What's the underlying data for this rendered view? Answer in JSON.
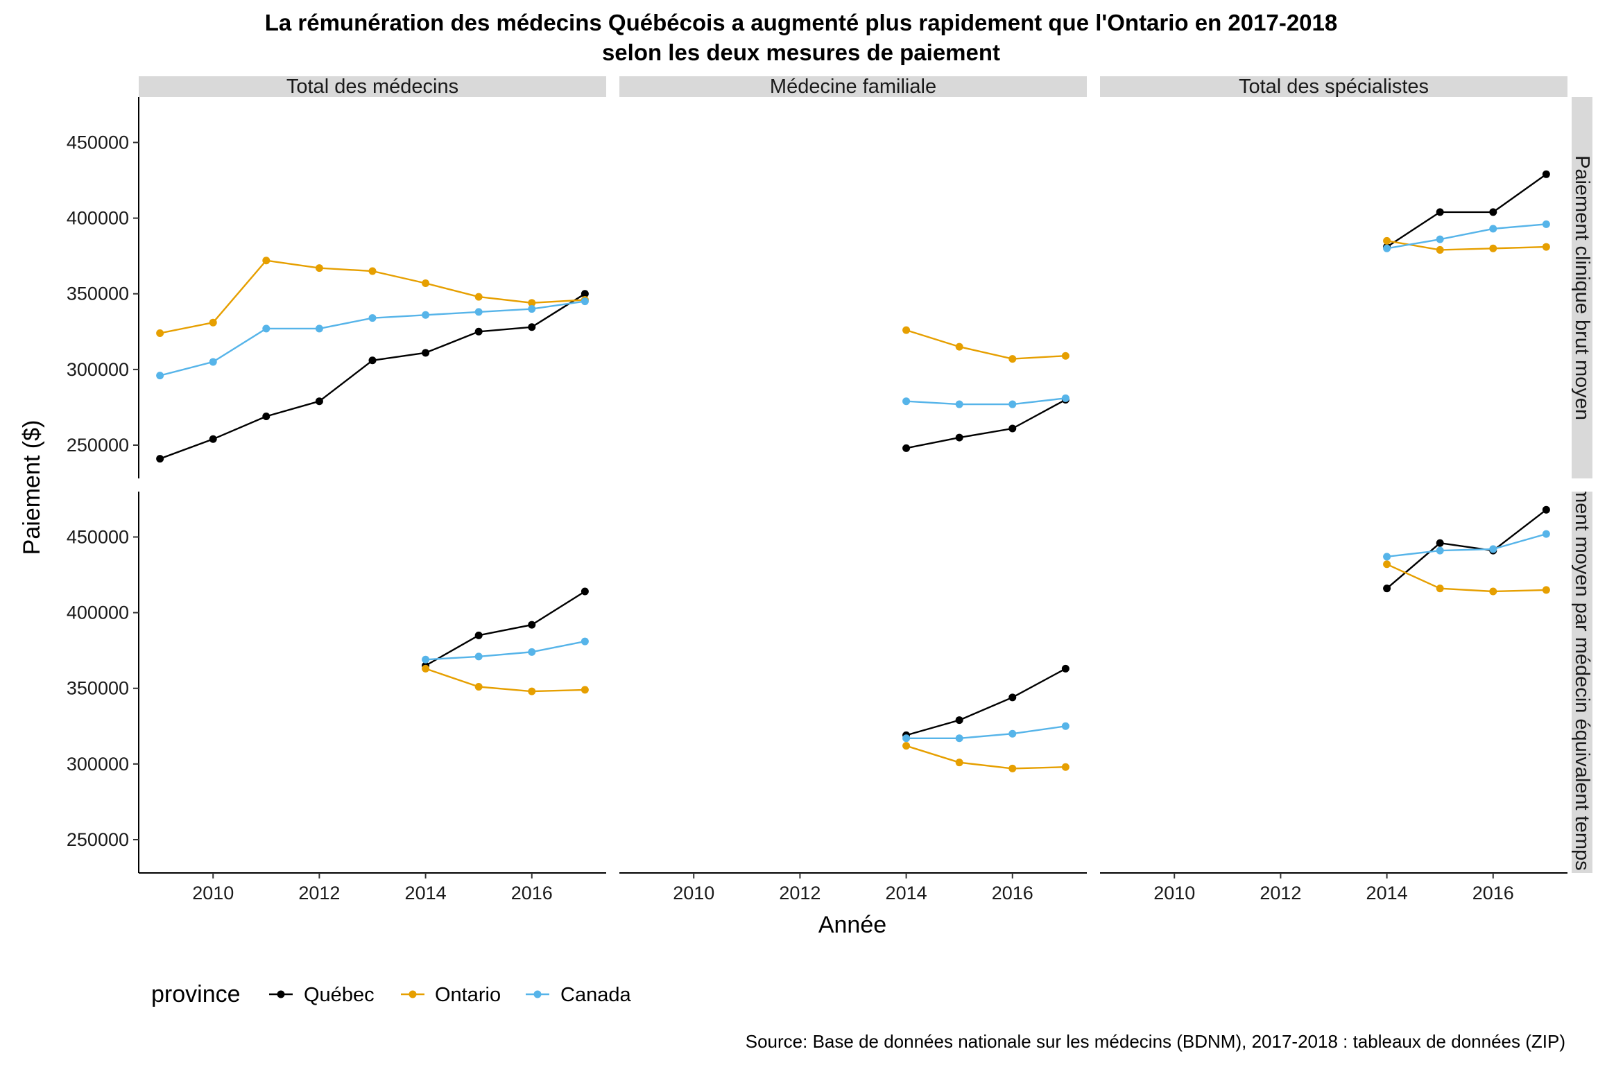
{
  "chart_data": {
    "type": "line",
    "title": "La rémunération des médecins Québécois a augmenté plus rapidement que l'Ontario en 2017-2018",
    "subtitle": "selon les deux mesures de paiement",
    "xlabel": "Année",
    "ylabel": "Paiement ($)",
    "caption": "Source:  Base de données nationale sur les médecins (BDNM), 2017-2018 : tableaux de données (ZIP)",
    "legend": {
      "title": "province",
      "position": "bottom-left"
    },
    "xlim": [
      2008.6,
      2017.4
    ],
    "ylim": [
      228000,
      480000
    ],
    "x_ticks": [
      2010,
      2012,
      2014,
      2016
    ],
    "y_ticks": [
      250000,
      300000,
      350000,
      400000,
      450000
    ],
    "grid": false,
    "columns": [
      "Total des médecins",
      "Médecine familiale",
      "Total des spécialistes"
    ],
    "rows": [
      "Paiement clinique brut moyen",
      "Paiement moyen par médecin équivalent temps plein"
    ],
    "series_styles": [
      {
        "name": "Québec",
        "color": "#000000"
      },
      {
        "name": "Ontario",
        "color": "#E69F00"
      },
      {
        "name": "Canada",
        "color": "#56B4E9"
      }
    ],
    "panels": [
      {
        "row": 0,
        "col": 0,
        "series": [
          {
            "name": "Québec",
            "x": [
              2009,
              2010,
              2011,
              2012,
              2013,
              2014,
              2015,
              2016,
              2017
            ],
            "y": [
              241000,
              254000,
              269000,
              279000,
              306000,
              311000,
              325000,
              328000,
              350000
            ]
          },
          {
            "name": "Ontario",
            "x": [
              2009,
              2010,
              2011,
              2012,
              2013,
              2014,
              2015,
              2016,
              2017
            ],
            "y": [
              324000,
              331000,
              372000,
              367000,
              365000,
              357000,
              348000,
              344000,
              346000
            ]
          },
          {
            "name": "Canada",
            "x": [
              2009,
              2010,
              2011,
              2012,
              2013,
              2014,
              2015,
              2016,
              2017
            ],
            "y": [
              296000,
              305000,
              327000,
              327000,
              334000,
              336000,
              338000,
              340000,
              345000
            ]
          }
        ]
      },
      {
        "row": 0,
        "col": 1,
        "series": [
          {
            "name": "Québec",
            "x": [
              2014,
              2015,
              2016,
              2017
            ],
            "y": [
              248000,
              255000,
              261000,
              280000
            ]
          },
          {
            "name": "Ontario",
            "x": [
              2014,
              2015,
              2016,
              2017
            ],
            "y": [
              326000,
              315000,
              307000,
              309000
            ]
          },
          {
            "name": "Canada",
            "x": [
              2014,
              2015,
              2016,
              2017
            ],
            "y": [
              279000,
              277000,
              277000,
              281000
            ]
          }
        ]
      },
      {
        "row": 0,
        "col": 2,
        "series": [
          {
            "name": "Québec",
            "x": [
              2014,
              2015,
              2016,
              2017
            ],
            "y": [
              381000,
              404000,
              404000,
              429000
            ]
          },
          {
            "name": "Ontario",
            "x": [
              2014,
              2015,
              2016,
              2017
            ],
            "y": [
              385000,
              379000,
              380000,
              381000
            ]
          },
          {
            "name": "Canada",
            "x": [
              2014,
              2015,
              2016,
              2017
            ],
            "y": [
              380000,
              386000,
              393000,
              396000
            ]
          }
        ]
      },
      {
        "row": 1,
        "col": 0,
        "series": [
          {
            "name": "Québec",
            "x": [
              2014,
              2015,
              2016,
              2017
            ],
            "y": [
              365000,
              385000,
              392000,
              414000
            ]
          },
          {
            "name": "Ontario",
            "x": [
              2014,
              2015,
              2016,
              2017
            ],
            "y": [
              363000,
              351000,
              348000,
              349000
            ]
          },
          {
            "name": "Canada",
            "x": [
              2014,
              2015,
              2016,
              2017
            ],
            "y": [
              369000,
              371000,
              374000,
              381000
            ]
          }
        ]
      },
      {
        "row": 1,
        "col": 1,
        "series": [
          {
            "name": "Québec",
            "x": [
              2014,
              2015,
              2016,
              2017
            ],
            "y": [
              319000,
              329000,
              344000,
              363000
            ]
          },
          {
            "name": "Ontario",
            "x": [
              2014,
              2015,
              2016,
              2017
            ],
            "y": [
              312000,
              301000,
              297000,
              298000
            ]
          },
          {
            "name": "Canada",
            "x": [
              2014,
              2015,
              2016,
              2017
            ],
            "y": [
              317000,
              317000,
              320000,
              325000
            ]
          }
        ]
      },
      {
        "row": 1,
        "col": 2,
        "series": [
          {
            "name": "Québec",
            "x": [
              2014,
              2015,
              2016,
              2017
            ],
            "y": [
              416000,
              446000,
              441000,
              468000
            ]
          },
          {
            "name": "Ontario",
            "x": [
              2014,
              2015,
              2016,
              2017
            ],
            "y": [
              432000,
              416000,
              414000,
              415000
            ]
          },
          {
            "name": "Canada",
            "x": [
              2014,
              2015,
              2016,
              2017
            ],
            "y": [
              437000,
              441000,
              442000,
              452000
            ]
          }
        ]
      }
    ]
  }
}
